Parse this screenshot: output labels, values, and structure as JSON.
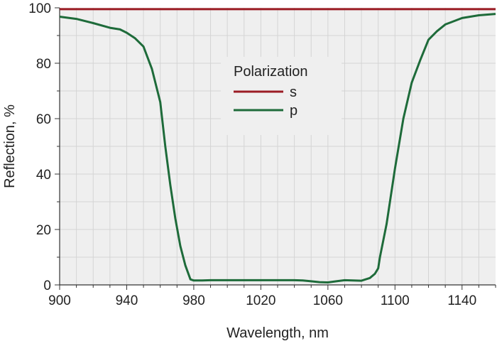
{
  "chart_data": {
    "type": "line",
    "xlabel": "Wavelength, nm",
    "ylabel": "Reflection, %",
    "xlim": [
      900,
      1160
    ],
    "ylim": [
      0,
      100
    ],
    "x_ticks": [
      900,
      940,
      980,
      1020,
      1060,
      1100,
      1140
    ],
    "y_ticks": [
      0,
      20,
      40,
      60,
      80,
      100
    ],
    "grid": true,
    "legend": {
      "title": "Polarization",
      "placement": "upper-center"
    },
    "series": [
      {
        "name": "s",
        "color": "#9b1c24",
        "x": [
          900,
          1160
        ],
        "y": [
          99.5,
          99.5
        ]
      },
      {
        "name": "p",
        "color": "#1e6b3a",
        "x": [
          900,
          910,
          920,
          930,
          936,
          940,
          945,
          950,
          955,
          960,
          963,
          966,
          969,
          972,
          975,
          978,
          980,
          985,
          990,
          1000,
          1010,
          1020,
          1030,
          1040,
          1045,
          1050,
          1055,
          1060,
          1065,
          1070,
          1075,
          1080,
          1085,
          1088,
          1090,
          1091,
          1095,
          1100,
          1105,
          1110,
          1115,
          1120,
          1125,
          1130,
          1140,
          1150,
          1160
        ],
        "y": [
          96.8,
          96,
          94.5,
          92.8,
          92.2,
          91,
          89,
          86,
          78,
          66,
          50,
          36,
          24,
          14,
          7,
          2,
          1.6,
          1.6,
          1.7,
          1.7,
          1.7,
          1.7,
          1.7,
          1.7,
          1.6,
          1.3,
          1.0,
          0.9,
          1.3,
          1.7,
          1.6,
          1.5,
          2.5,
          4,
          6,
          10,
          22,
          42,
          60,
          73,
          81,
          88.5,
          91.5,
          94,
          96.3,
          97.3,
          97.8
        ]
      }
    ]
  }
}
